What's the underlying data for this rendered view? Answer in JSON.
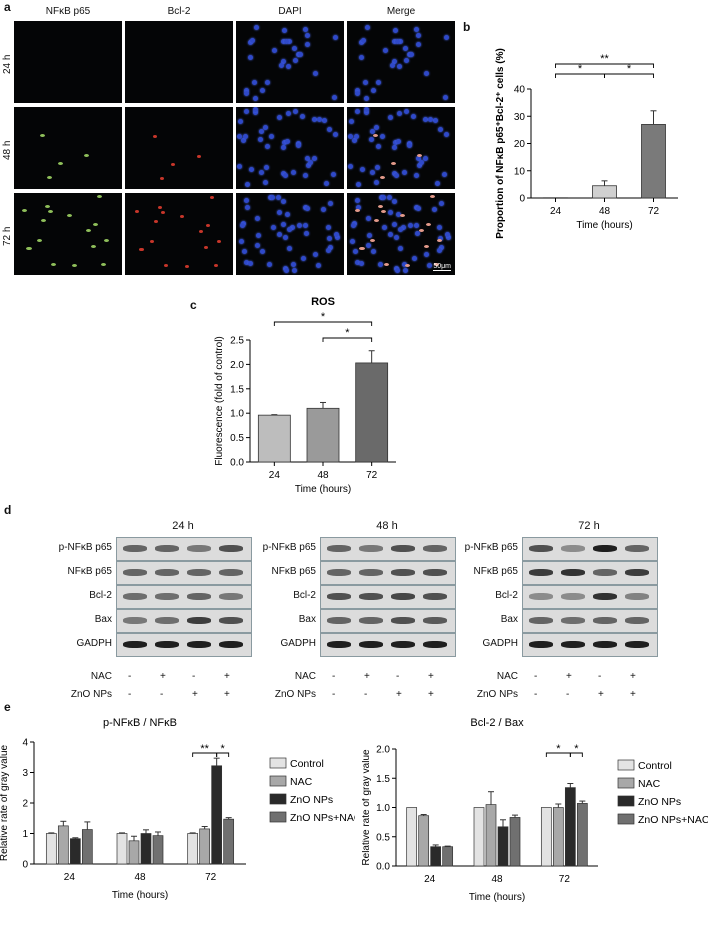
{
  "panels": {
    "a": {
      "letter": "a",
      "channels": [
        "NFκB p65",
        "Bcl-2",
        "DAPI",
        "Merge"
      ],
      "rows": [
        "24 h",
        "48 h",
        "72 h"
      ],
      "scalebar": "50μm"
    },
    "b": {
      "letter": "b"
    },
    "c": {
      "letter": "c"
    },
    "d": {
      "letter": "d",
      "timepoints": [
        "24 h",
        "48 h",
        "72 h"
      ],
      "proteins": [
        "p-NFκB p65",
        "NFκB p65",
        "Bcl-2",
        "Bax",
        "GADPH"
      ],
      "treatments": [
        {
          "label": "NAC",
          "marks": [
            "-",
            "+",
            "-",
            "+"
          ]
        },
        {
          "label": "ZnO NPs",
          "marks": [
            "-",
            "-",
            "+",
            "+"
          ]
        }
      ]
    },
    "e": {
      "letter": "e"
    }
  },
  "chart_data": [
    {
      "id": "b",
      "type": "bar",
      "categories": [
        "24",
        "48",
        "72"
      ],
      "values": [
        0.1,
        4.5,
        27
      ],
      "errors": [
        0,
        1.8,
        5
      ],
      "colors": [
        "#e8e8e8",
        "#d0d0d0",
        "#7a7a7a"
      ],
      "title": "",
      "xlabel": "Time (hours)",
      "ylabel": "Proportion of NFκB p65⁺Bcl-2⁺ cells (%)",
      "ylim": [
        0,
        40
      ],
      "yticks": [
        0,
        10,
        20,
        30,
        40
      ],
      "significance": [
        {
          "from": "24",
          "to": "72",
          "label": "**"
        },
        {
          "from": "24",
          "to": "48",
          "label": "*"
        },
        {
          "from": "48",
          "to": "72",
          "label": "*"
        }
      ]
    },
    {
      "id": "c",
      "type": "bar",
      "categories": [
        "24",
        "48",
        "72"
      ],
      "values": [
        0.96,
        1.1,
        2.03
      ],
      "errors": [
        0.01,
        0.12,
        0.25
      ],
      "colors": [
        "#bdbdbd",
        "#9a9a9a",
        "#6a6a6a"
      ],
      "title": "ROS",
      "xlabel": "Time (hours)",
      "ylabel": "Fluorescence (fold of control)",
      "ylim": [
        0,
        2.5
      ],
      "yticks": [
        "0.0",
        "0.5",
        "1.0",
        "1.5",
        "2.0",
        "2.5"
      ],
      "significance": [
        {
          "from": "24",
          "to": "72",
          "label": "*"
        },
        {
          "from": "48",
          "to": "72",
          "label": "*"
        }
      ]
    },
    {
      "id": "e1",
      "type": "bar",
      "title": "p-NFκB / NFκB",
      "categories": [
        "24",
        "48",
        "72"
      ],
      "xlabel": "Time (hours)",
      "ylabel": "Relative rate of gray value",
      "ylim": [
        0,
        4
      ],
      "yticks": [
        0,
        1,
        2,
        3,
        4
      ],
      "series": [
        {
          "name": "Control",
          "values": [
            1.0,
            1.0,
            1.0
          ],
          "errors": [
            0.02,
            0.02,
            0.02
          ]
        },
        {
          "name": "NAC",
          "values": [
            1.25,
            0.76,
            1.15
          ],
          "errors": [
            0.15,
            0.15,
            0.08
          ]
        },
        {
          "name": "ZnO NPs",
          "values": [
            0.83,
            1.0,
            3.22
          ],
          "errors": [
            0.03,
            0.12,
            0.25
          ]
        },
        {
          "name": "ZnO NPs+NAC",
          "values": [
            1.13,
            0.93,
            1.47
          ],
          "errors": [
            0.25,
            0.12,
            0.05
          ]
        }
      ],
      "series_colors": [
        "#e3e3e3",
        "#a8a8a8",
        "#2a2a2a",
        "#707070"
      ],
      "significance": [
        {
          "category": "72",
          "from": 0,
          "to": 2,
          "label": "**"
        },
        {
          "category": "72",
          "from": 2,
          "to": 3,
          "label": "*"
        }
      ]
    },
    {
      "id": "e2",
      "type": "bar",
      "title": "Bcl-2 / Bax",
      "categories": [
        "24",
        "48",
        "72"
      ],
      "xlabel": "Time (hours)",
      "ylabel": "Relative rate of gray value",
      "ylim": [
        0,
        2.0
      ],
      "yticks": [
        "0.0",
        "0.5",
        "1.0",
        "1.5",
        "2.0"
      ],
      "series": [
        {
          "name": "Control",
          "values": [
            1.0,
            1.0,
            1.0
          ],
          "errors": [
            0.0,
            0.0,
            0.0
          ]
        },
        {
          "name": "NAC",
          "values": [
            0.86,
            1.05,
            1.0
          ],
          "errors": [
            0.02,
            0.22,
            0.06
          ]
        },
        {
          "name": "ZnO NPs",
          "values": [
            0.33,
            0.67,
            1.34
          ],
          "errors": [
            0.03,
            0.12,
            0.07
          ]
        },
        {
          "name": "ZnO NPs+NAC",
          "values": [
            0.33,
            0.83,
            1.07
          ],
          "errors": [
            0.01,
            0.04,
            0.04
          ]
        }
      ],
      "series_colors": [
        "#e3e3e3",
        "#a8a8a8",
        "#2a2a2a",
        "#707070"
      ],
      "significance": [
        {
          "category": "72",
          "from": 0,
          "to": 2,
          "label": "*"
        },
        {
          "category": "72",
          "from": 2,
          "to": 3,
          "label": "*"
        }
      ]
    }
  ]
}
